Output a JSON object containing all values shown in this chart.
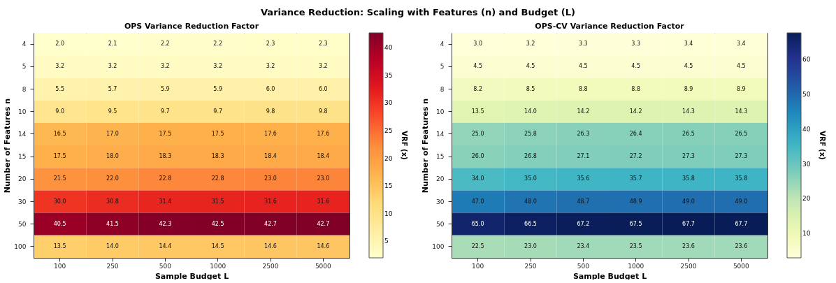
{
  "chart_data": [
    {
      "type": "heatmap",
      "title": "OPS Variance Reduction Factor",
      "xlabel": "Sample Budget L",
      "ylabel": "Number of Features n",
      "clabel": "VRF (x)",
      "annotations": [
        "Variance Reduction: Scaling with Features (n) and Budget (L)"
      ],
      "categories": [
        "100",
        "250",
        "500",
        "1000",
        "2500",
        "5000"
      ],
      "y_categories": [
        "4",
        "5",
        "8",
        "10",
        "14",
        "15",
        "20",
        "30",
        "50",
        "100"
      ],
      "cells": [
        [
          2.0,
          2.1,
          2.2,
          2.2,
          2.3,
          2.3
        ],
        [
          3.2,
          3.2,
          3.2,
          3.2,
          3.2,
          3.2
        ],
        [
          5.5,
          5.7,
          5.9,
          5.9,
          6.0,
          6.0
        ],
        [
          9.0,
          9.5,
          9.7,
          9.7,
          9.8,
          9.8
        ],
        [
          16.5,
          17.0,
          17.5,
          17.5,
          17.6,
          17.6
        ],
        [
          17.5,
          18.0,
          18.3,
          18.3,
          18.4,
          18.4
        ],
        [
          21.5,
          22.0,
          22.8,
          22.8,
          23.0,
          23.0
        ],
        [
          30.0,
          30.8,
          31.4,
          31.5,
          31.6,
          31.6
        ],
        [
          40.5,
          41.5,
          42.3,
          42.5,
          42.7,
          42.7
        ],
        [
          13.5,
          14.0,
          14.4,
          14.5,
          14.6,
          14.6
        ]
      ],
      "cell_labels": [
        [
          "2.0",
          "2.1",
          "2.2",
          "2.2",
          "2.3",
          "2.3"
        ],
        [
          "3.2",
          "3.2",
          "3.2",
          "3.2",
          "3.2",
          "3.2"
        ],
        [
          "5.5",
          "5.7",
          "5.9",
          "5.9",
          "6.0",
          "6.0"
        ],
        [
          "9.0",
          "9.5",
          "9.7",
          "9.7",
          "9.8",
          "9.8"
        ],
        [
          "16.5",
          "17.0",
          "17.5",
          "17.5",
          "17.6",
          "17.6"
        ],
        [
          "17.5",
          "18.0",
          "18.3",
          "18.3",
          "18.4",
          "18.4"
        ],
        [
          "21.5",
          "22.0",
          "22.8",
          "22.8",
          "23.0",
          "23.0"
        ],
        [
          "30.0",
          "30.8",
          "31.4",
          "31.5",
          "31.6",
          "31.6"
        ],
        [
          "40.5",
          "41.5",
          "42.3",
          "42.5",
          "42.7",
          "42.7"
        ],
        [
          "13.5",
          "14.0",
          "14.4",
          "14.5",
          "14.6",
          "14.6"
        ]
      ],
      "clim": [
        2.0,
        42.7
      ],
      "cticks": [
        5,
        10,
        15,
        20,
        25,
        30,
        35,
        40
      ]
    },
    {
      "type": "heatmap",
      "title": "OPS-CV Variance Reduction Factor",
      "xlabel": "Sample Budget L",
      "ylabel": "Number of Features n",
      "clabel": "VRF (x)",
      "categories": [
        "100",
        "250",
        "500",
        "1000",
        "2500",
        "5000"
      ],
      "y_categories": [
        "4",
        "5",
        "8",
        "10",
        "14",
        "15",
        "20",
        "30",
        "50",
        "100"
      ],
      "cells": [
        [
          3.0,
          3.2,
          3.3,
          3.3,
          3.4,
          3.4
        ],
        [
          4.5,
          4.5,
          4.5,
          4.5,
          4.5,
          4.5
        ],
        [
          8.2,
          8.5,
          8.8,
          8.8,
          8.9,
          8.9
        ],
        [
          13.5,
          14.0,
          14.2,
          14.2,
          14.3,
          14.3
        ],
        [
          25.0,
          25.8,
          26.3,
          26.4,
          26.5,
          26.5
        ],
        [
          26.0,
          26.8,
          27.1,
          27.2,
          27.3,
          27.3
        ],
        [
          34.0,
          35.0,
          35.6,
          35.7,
          35.8,
          35.8
        ],
        [
          47.0,
          48.0,
          48.7,
          48.9,
          49.0,
          49.0
        ],
        [
          65.0,
          66.5,
          67.2,
          67.5,
          67.7,
          67.7
        ],
        [
          22.5,
          23.0,
          23.4,
          23.5,
          23.6,
          23.6
        ]
      ],
      "cell_labels": [
        [
          "3.0",
          "3.2",
          "3.3",
          "3.3",
          "3.4",
          "3.4"
        ],
        [
          "4.5",
          "4.5",
          "4.5",
          "4.5",
          "4.5",
          "4.5"
        ],
        [
          "8.2",
          "8.5",
          "8.8",
          "8.8",
          "8.9",
          "8.9"
        ],
        [
          "13.5",
          "14.0",
          "14.2",
          "14.2",
          "14.3",
          "14.3"
        ],
        [
          "25.0",
          "25.8",
          "26.3",
          "26.4",
          "26.5",
          "26.5"
        ],
        [
          "26.0",
          "26.8",
          "27.1",
          "27.2",
          "27.3",
          "27.3"
        ],
        [
          "34.0",
          "35.0",
          "35.6",
          "35.7",
          "35.8",
          "35.8"
        ],
        [
          "47.0",
          "48.0",
          "48.7",
          "48.9",
          "49.0",
          "49.0"
        ],
        [
          "65.0",
          "66.5",
          "67.2",
          "67.5",
          "67.7",
          "67.7"
        ],
        [
          "22.5",
          "23.0",
          "23.4",
          "23.5",
          "23.6",
          "23.6"
        ]
      ],
      "clim": [
        3.0,
        67.7
      ],
      "cticks": [
        10,
        20,
        30,
        40,
        50,
        60
      ]
    }
  ]
}
